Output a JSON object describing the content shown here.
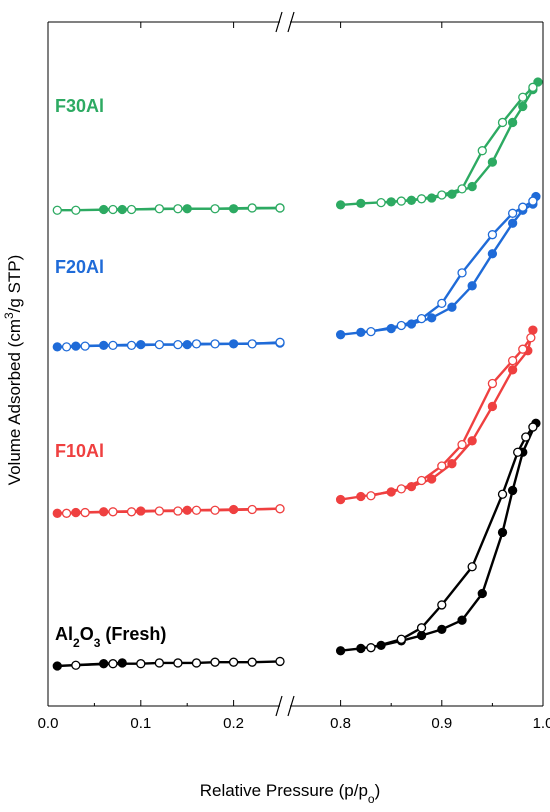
{
  "chart_data": {
    "type": "line",
    "xlabel": "Relative Pressure (p/p",
    "xlabel_sub": "o",
    "xlabel_end": ")",
    "ylabel": "Volume Adsorbed (cm",
    "ylabel_sup": "3",
    "ylabel_end": "/g STP)",
    "x_axis_break": true,
    "x_segments": [
      {
        "xlim": [
          0.0,
          0.25
        ],
        "ticks": [
          "0.0",
          "0.1",
          "0.2"
        ],
        "tick_values": [
          0.0,
          0.1,
          0.2
        ]
      },
      {
        "xlim": [
          0.75,
          1.0
        ],
        "ticks": [
          "0.8",
          "0.9",
          "1.0"
        ],
        "tick_values": [
          0.8,
          0.9,
          1.0
        ]
      }
    ],
    "y_ticks_labeled": false,
    "ylim": [
      0,
      820
    ],
    "series": [
      {
        "label": "Al",
        "label_sub": "2",
        "label_mid": "O",
        "label_sub2": "3",
        "label_end": " (Fresh)",
        "color": "#000000",
        "adsorption": [
          [
            0.01,
            0
          ],
          [
            0.06,
            3
          ],
          [
            0.08,
            4
          ],
          [
            0.8,
            20
          ],
          [
            0.82,
            23
          ],
          [
            0.84,
            27
          ],
          [
            0.86,
            33
          ],
          [
            0.88,
            40
          ],
          [
            0.9,
            48
          ],
          [
            0.92,
            60
          ],
          [
            0.94,
            95
          ],
          [
            0.96,
            175
          ],
          [
            0.97,
            230
          ],
          [
            0.98,
            280
          ],
          [
            0.993,
            318
          ]
        ],
        "desorption": [
          [
            0.03,
            1
          ],
          [
            0.07,
            3
          ],
          [
            0.1,
            3
          ],
          [
            0.12,
            4
          ],
          [
            0.14,
            4
          ],
          [
            0.16,
            4
          ],
          [
            0.18,
            5
          ],
          [
            0.2,
            5
          ],
          [
            0.22,
            5
          ],
          [
            0.25,
            6
          ],
          [
            0.83,
            24
          ],
          [
            0.86,
            35
          ],
          [
            0.88,
            50
          ],
          [
            0.9,
            80
          ],
          [
            0.93,
            130
          ],
          [
            0.96,
            225
          ],
          [
            0.975,
            280
          ],
          [
            0.983,
            300
          ],
          [
            0.99,
            313
          ]
        ]
      },
      {
        "label": "F10Al",
        "color": "#ef4040",
        "adsorption": [
          [
            0.01,
            200
          ],
          [
            0.03,
            201
          ],
          [
            0.06,
            202
          ],
          [
            0.1,
            203
          ],
          [
            0.15,
            204
          ],
          [
            0.2,
            205
          ],
          [
            0.25,
            206
          ],
          [
            0.8,
            218
          ],
          [
            0.82,
            222
          ],
          [
            0.85,
            228
          ],
          [
            0.87,
            235
          ],
          [
            0.89,
            245
          ],
          [
            0.91,
            265
          ],
          [
            0.93,
            295
          ],
          [
            0.95,
            340
          ],
          [
            0.97,
            388
          ],
          [
            0.985,
            413
          ],
          [
            0.99,
            440
          ]
        ],
        "desorption": [
          [
            0.02,
            200
          ],
          [
            0.04,
            201
          ],
          [
            0.07,
            202
          ],
          [
            0.09,
            202
          ],
          [
            0.12,
            203
          ],
          [
            0.14,
            203
          ],
          [
            0.16,
            204
          ],
          [
            0.18,
            204
          ],
          [
            0.22,
            205
          ],
          [
            0.25,
            206
          ],
          [
            0.83,
            223
          ],
          [
            0.86,
            232
          ],
          [
            0.88,
            243
          ],
          [
            0.9,
            262
          ],
          [
            0.92,
            290
          ],
          [
            0.95,
            370
          ],
          [
            0.97,
            400
          ],
          [
            0.98,
            415
          ],
          [
            0.988,
            430
          ]
        ]
      },
      {
        "label": "F20Al",
        "color": "#1f6bd8",
        "adsorption": [
          [
            0.01,
            418
          ],
          [
            0.03,
            419
          ],
          [
            0.06,
            420
          ],
          [
            0.1,
            421
          ],
          [
            0.15,
            421
          ],
          [
            0.2,
            422
          ],
          [
            0.25,
            423
          ],
          [
            0.8,
            434
          ],
          [
            0.82,
            437
          ],
          [
            0.85,
            442
          ],
          [
            0.87,
            448
          ],
          [
            0.89,
            456
          ],
          [
            0.91,
            470
          ],
          [
            0.93,
            498
          ],
          [
            0.95,
            540
          ],
          [
            0.97,
            580
          ],
          [
            0.98,
            597
          ],
          [
            0.99,
            605
          ],
          [
            0.993,
            615
          ]
        ],
        "desorption": [
          [
            0.02,
            418
          ],
          [
            0.04,
            419
          ],
          [
            0.07,
            420
          ],
          [
            0.09,
            420
          ],
          [
            0.12,
            421
          ],
          [
            0.14,
            421
          ],
          [
            0.16,
            422
          ],
          [
            0.18,
            422
          ],
          [
            0.22,
            422
          ],
          [
            0.25,
            424
          ],
          [
            0.83,
            438
          ],
          [
            0.86,
            446
          ],
          [
            0.88,
            455
          ],
          [
            0.9,
            475
          ],
          [
            0.92,
            515
          ],
          [
            0.95,
            565
          ],
          [
            0.97,
            593
          ],
          [
            0.98,
            601
          ],
          [
            0.99,
            609
          ]
        ]
      },
      {
        "label": "F30Al",
        "color": "#2daa62",
        "adsorption": [
          [
            0.06,
            598
          ],
          [
            0.08,
            598
          ],
          [
            0.15,
            599
          ],
          [
            0.2,
            599
          ],
          [
            0.25,
            600
          ],
          [
            0.8,
            604
          ],
          [
            0.82,
            606
          ],
          [
            0.85,
            608
          ],
          [
            0.87,
            610
          ],
          [
            0.89,
            613
          ],
          [
            0.91,
            618
          ],
          [
            0.93,
            628
          ],
          [
            0.95,
            660
          ],
          [
            0.97,
            712
          ],
          [
            0.98,
            733
          ],
          [
            0.99,
            755
          ],
          [
            0.995,
            765
          ]
        ],
        "desorption": [
          [
            0.01,
            597
          ],
          [
            0.03,
            597
          ],
          [
            0.07,
            598
          ],
          [
            0.09,
            598
          ],
          [
            0.12,
            599
          ],
          [
            0.14,
            599
          ],
          [
            0.18,
            599
          ],
          [
            0.22,
            600
          ],
          [
            0.25,
            600
          ],
          [
            0.84,
            607
          ],
          [
            0.86,
            609
          ],
          [
            0.88,
            612
          ],
          [
            0.9,
            617
          ],
          [
            0.92,
            625
          ],
          [
            0.94,
            675
          ],
          [
            0.96,
            712
          ],
          [
            0.98,
            745
          ],
          [
            0.99,
            758
          ]
        ]
      }
    ]
  }
}
